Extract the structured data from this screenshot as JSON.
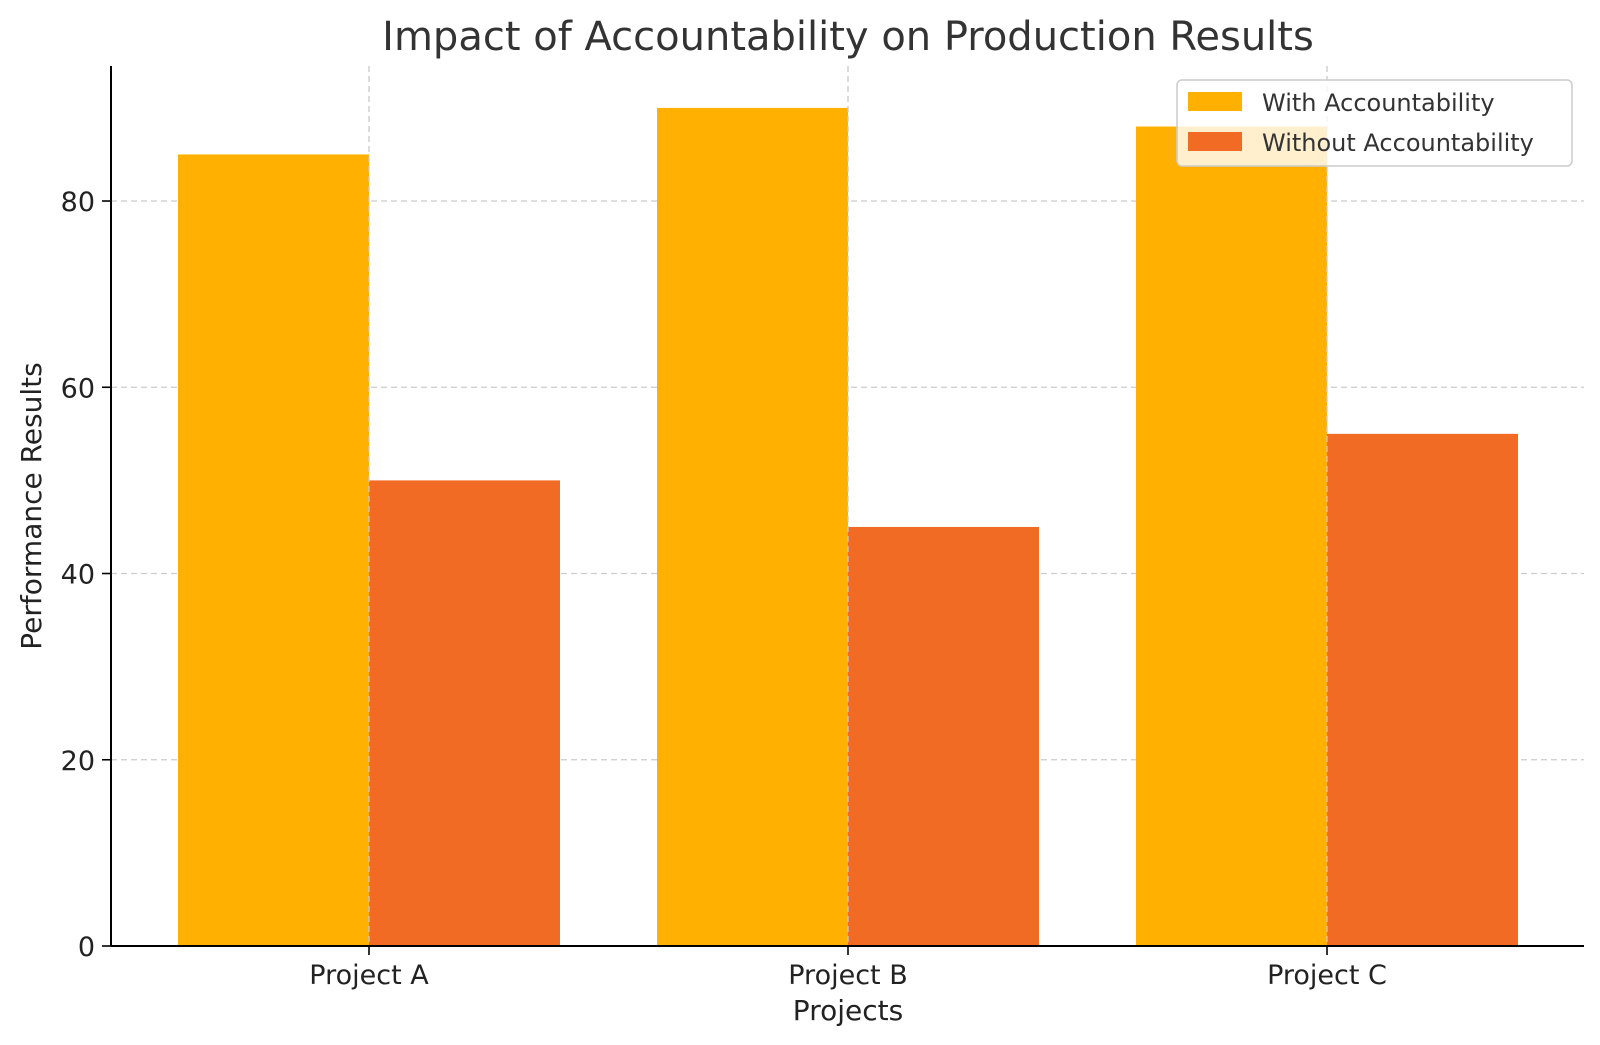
{
  "chart_data": {
    "type": "bar",
    "title": "Impact of Accountability on Production Results",
    "xlabel": "Projects",
    "ylabel": "Performance Results",
    "categories": [
      "Project A",
      "Project B",
      "Project C"
    ],
    "series": [
      {
        "name": "With Accountability",
        "values": [
          85,
          90,
          88
        ],
        "color": "#FFB000"
      },
      {
        "name": "Without Accountability",
        "values": [
          50,
          45,
          55
        ],
        "color": "#F26B24"
      }
    ],
    "ylim": [
      0,
      94.5
    ],
    "yticks": [
      0,
      20,
      40,
      60,
      80
    ],
    "grid": true,
    "legend_position": "top-right"
  }
}
